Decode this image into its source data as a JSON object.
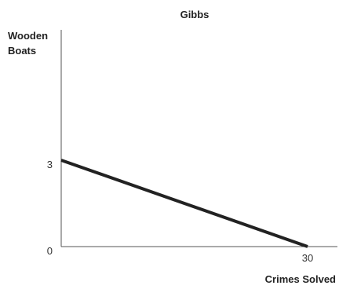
{
  "chart_data": {
    "type": "line",
    "title": "Gibbs",
    "xlabel": "Crimes Solved",
    "ylabel_lines": [
      "Wooden",
      "Boats"
    ],
    "xlim": [
      0,
      30
    ],
    "ylim": [
      0,
      3
    ],
    "x_ticks": [
      {
        "value": 30,
        "label": "30"
      }
    ],
    "y_ticks": [
      {
        "value": 0,
        "label": "0"
      },
      {
        "value": 3,
        "label": "3"
      }
    ],
    "grid": false,
    "series": [
      {
        "x": [
          0,
          30
        ],
        "y": [
          3,
          0
        ],
        "color": "#222222"
      }
    ]
  }
}
